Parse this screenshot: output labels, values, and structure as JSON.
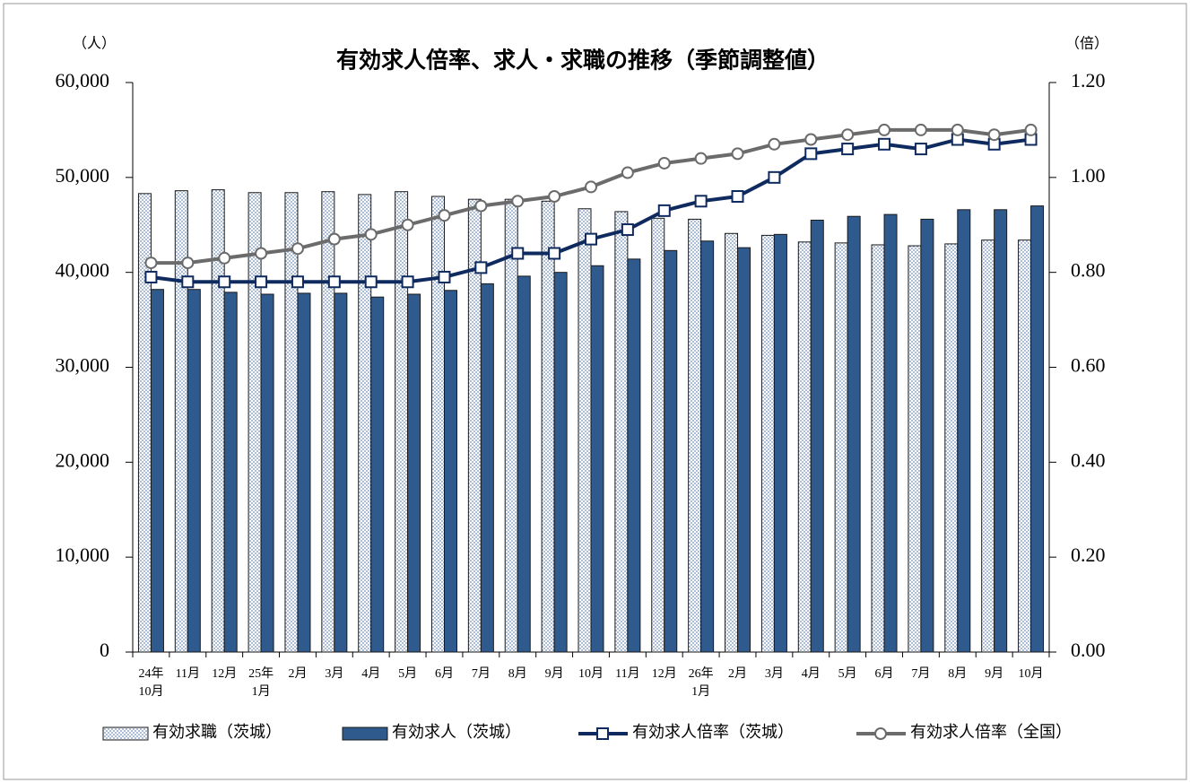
{
  "chart_data": {
    "type": "bar",
    "title": "有効求人倍率、求人・求職の推移（季節調整値）",
    "y_unit": "（人）",
    "y2_unit": "（倍）",
    "categories": [
      "24年\n10月",
      "11月",
      "12月",
      "25年\n1月",
      "2月",
      "3月",
      "4月",
      "5月",
      "6月",
      "7月",
      "8月",
      "9月",
      "10月",
      "11月",
      "12月",
      "26年\n1月",
      "2月",
      "3月",
      "4月",
      "5月",
      "6月",
      "7月",
      "8月",
      "9月",
      "10月"
    ],
    "ylim": [
      0,
      60000
    ],
    "yticks": [
      {
        "value": 0,
        "label": "0"
      },
      {
        "value": 10000,
        "label": "10,000"
      },
      {
        "value": 20000,
        "label": "20,000"
      },
      {
        "value": 30000,
        "label": "30,000"
      },
      {
        "value": 40000,
        "label": "40,000"
      },
      {
        "value": 50000,
        "label": "50,000"
      },
      {
        "value": 60000,
        "label": "60,000"
      }
    ],
    "y2lim": [
      0,
      1.2
    ],
    "y2ticks": [
      {
        "value": 0,
        "label": "0.00"
      },
      {
        "value": 0.2,
        "label": "0.20"
      },
      {
        "value": 0.4,
        "label": "0.40"
      },
      {
        "value": 0.6,
        "label": "0.60"
      },
      {
        "value": 0.8,
        "label": "0.80"
      },
      {
        "value": 1.0,
        "label": "1.00"
      },
      {
        "value": 1.2,
        "label": "1.20"
      }
    ],
    "series": [
      {
        "name": "有効求職（茨城）",
        "type": "bar",
        "fill": "dotted",
        "color": "#5a7fae",
        "values": [
          48300,
          48600,
          48700,
          48400,
          48400,
          48500,
          48200,
          48500,
          48000,
          47700,
          47700,
          47500,
          46700,
          46400,
          45700,
          45600,
          44100,
          43900,
          43200,
          43100,
          42900,
          42800,
          43000,
          43400,
          43400
        ]
      },
      {
        "name": "有効求人（茨城）",
        "type": "bar",
        "fill": "solid",
        "color": "#2f5a8e",
        "values": [
          38200,
          38200,
          37900,
          37700,
          37800,
          37800,
          37400,
          37700,
          38100,
          38800,
          39600,
          40000,
          40700,
          41400,
          42300,
          43300,
          42600,
          44000,
          45500,
          45900,
          46100,
          45600,
          46600,
          46600,
          47000
        ]
      },
      {
        "name": "有効求人倍率（茨城）",
        "type": "line",
        "axis": "y2",
        "marker": "square",
        "color": "#0f2a5e",
        "values": [
          0.79,
          0.78,
          0.78,
          0.78,
          0.78,
          0.78,
          0.78,
          0.78,
          0.79,
          0.81,
          0.84,
          0.84,
          0.87,
          0.89,
          0.93,
          0.95,
          0.96,
          1.0,
          1.05,
          1.06,
          1.07,
          1.06,
          1.08,
          1.07,
          1.08
        ]
      },
      {
        "name": "有効求人倍率（全国）",
        "type": "line",
        "axis": "y2",
        "marker": "circle",
        "color": "#6b6b6b",
        "values": [
          0.82,
          0.82,
          0.83,
          0.84,
          0.85,
          0.87,
          0.88,
          0.9,
          0.92,
          0.94,
          0.95,
          0.96,
          0.98,
          1.01,
          1.03,
          1.04,
          1.05,
          1.07,
          1.08,
          1.09,
          1.1,
          1.1,
          1.1,
          1.09,
          1.1
        ]
      }
    ]
  }
}
